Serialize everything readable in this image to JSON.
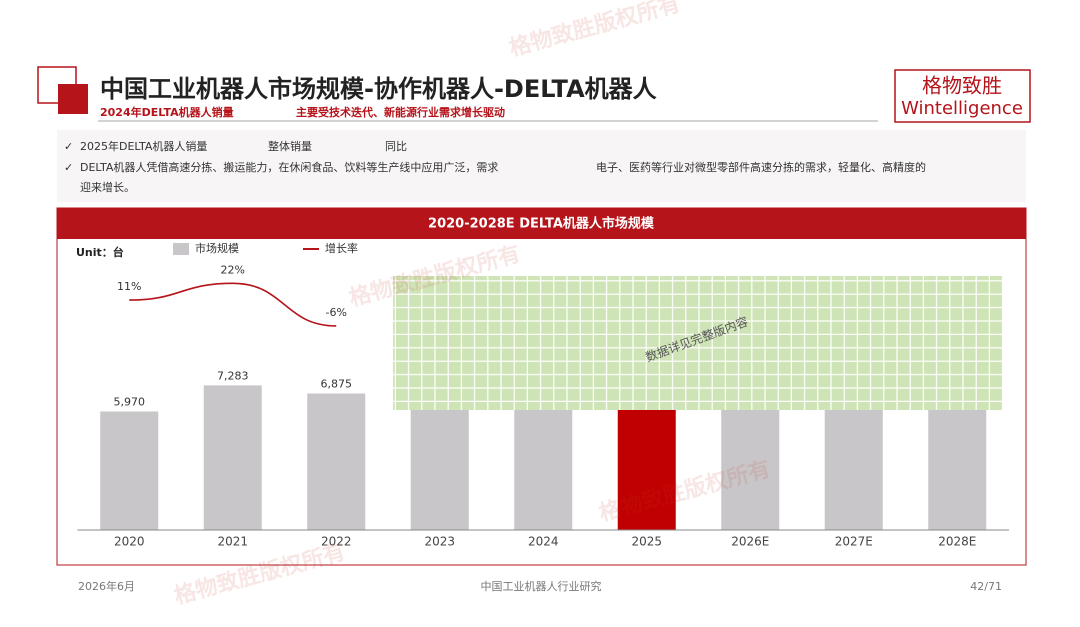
{
  "header": {
    "title": "中国工业机器人市场规模-协作机器人-DELTA机器人",
    "tag1": "2024年DELTA机器人销量",
    "tag2": "主要受技术迭代、新能源行业需求增长驱动"
  },
  "logo": {
    "cn": "格物致胜",
    "en": "Wintelligence"
  },
  "bullets": {
    "b1": [
      "2025年DELTA机器人销量",
      "整体销量",
      "同比"
    ],
    "b2": [
      "DELTA机器人凭借高速分拣、搬运能力，在休闲食品、饮料等生产线中应用广泛，需求",
      "电子、医药等行业对微型零部件高速分拣的需求，轻量化、高精度的"
    ],
    "b3": "迎来增长。"
  },
  "watermark": "格物致胜版权所有",
  "mask_text": "数据详见完整版内容",
  "footer": {
    "date": "2026年6月",
    "center": "中国工业机器人行业研究",
    "page": "42/71"
  },
  "chart_data": {
    "type": "bar",
    "title": "2020-2028E DELTA机器人市场规模",
    "unit": "Unit：台",
    "categories": [
      "2020",
      "2021",
      "2022",
      "2023",
      "2024",
      "2025",
      "2026E",
      "2027E",
      "2028E"
    ],
    "ylim": [
      0,
      13500
    ],
    "y2lim": [
      -140,
      36
    ],
    "series": [
      {
        "name": "市场规模",
        "color": "#c8c6c8",
        "type": "bar",
        "values": [
          5970,
          7283,
          6875,
          null,
          null,
          null,
          null,
          null,
          null
        ],
        "value_labels": [
          "5,970",
          "7,283",
          "6,875",
          null,
          null,
          null,
          null,
          null,
          null
        ]
      },
      {
        "name": "增长率",
        "color": "#b5141b",
        "type": "line",
        "axis": "y2",
        "values": [
          11,
          22,
          -6,
          null,
          null,
          null,
          null,
          null,
          null
        ],
        "value_labels": [
          "11%",
          "22%",
          "-6%",
          null,
          null,
          null,
          null,
          null,
          null
        ]
      }
    ]
  }
}
